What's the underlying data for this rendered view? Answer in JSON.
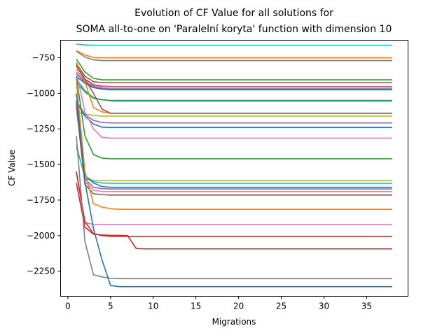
{
  "chart_data": {
    "type": "line",
    "title_line1": "Evolution of CF Value for all solutions for",
    "title_line2": "SOMA all-to-one on 'Paralelní koryta' function with dimension 10",
    "xlabel": "Migrations",
    "ylabel": "CF Value",
    "xlim": [
      -0.85,
      39.85
    ],
    "ylim": [
      -2426,
      -627
    ],
    "xticks": [
      0,
      5,
      10,
      15,
      20,
      25,
      30,
      35
    ],
    "xtick_labels": [
      "0",
      "5",
      "10",
      "15",
      "20",
      "25",
      "30",
      "35"
    ],
    "yticks": [
      -750,
      -1000,
      -1250,
      -1500,
      -1750,
      -2000,
      -2250
    ],
    "ytick_labels": [
      "−750",
      "−1000",
      "−1250",
      "−1500",
      "−1750",
      "−2000",
      "−2250"
    ],
    "grid": false,
    "legend": false,
    "x_end": 38,
    "series": [
      {
        "color": "#17becf",
        "points": [
          [
            1,
            -655
          ],
          [
            2,
            -660
          ],
          [
            3,
            -662
          ]
        ],
        "final": -662
      },
      {
        "color": "#ff7f0e",
        "points": [
          [
            1,
            -700
          ],
          [
            2,
            -730
          ],
          [
            3,
            -748
          ]
        ],
        "final": -750
      },
      {
        "color": "#7f7f7f",
        "points": [
          [
            1,
            -705
          ],
          [
            2,
            -745
          ],
          [
            3,
            -765
          ]
        ],
        "final": -770
      },
      {
        "color": "#2ca02c",
        "points": [
          [
            1,
            -760
          ],
          [
            2,
            -850
          ],
          [
            3,
            -895
          ],
          [
            4,
            -905
          ]
        ],
        "final": -905
      },
      {
        "color": "#8c564b",
        "points": [
          [
            1,
            -790
          ],
          [
            2,
            -880
          ],
          [
            3,
            -918
          ],
          [
            4,
            -925
          ]
        ],
        "final": -925
      },
      {
        "color": "#d62728",
        "points": [
          [
            1,
            -800
          ],
          [
            2,
            -900
          ],
          [
            3,
            -940
          ],
          [
            4,
            -950
          ]
        ],
        "final": -952
      },
      {
        "color": "#e377c2",
        "points": [
          [
            1,
            -830
          ],
          [
            2,
            -920
          ],
          [
            3,
            -948
          ],
          [
            4,
            -955
          ]
        ],
        "final": -955
      },
      {
        "color": "#bcbd22",
        "points": [
          [
            1,
            -850
          ],
          [
            2,
            -930
          ],
          [
            3,
            -960
          ],
          [
            4,
            -965
          ]
        ],
        "final": -965
      },
      {
        "color": "#9467bd",
        "points": [
          [
            1,
            -860
          ],
          [
            2,
            -920
          ],
          [
            3,
            -955
          ],
          [
            4,
            -965
          ],
          [
            5,
            -970
          ]
        ],
        "final": -970
      },
      {
        "color": "#1f77b4",
        "points": [
          [
            1,
            -880
          ],
          [
            2,
            -930
          ],
          [
            3,
            -960
          ],
          [
            4,
            -970
          ],
          [
            5,
            -975
          ]
        ],
        "final": -975
      },
      {
        "color": "#17becf",
        "points": [
          [
            1,
            -900
          ],
          [
            2,
            -980
          ],
          [
            3,
            -1030
          ],
          [
            4,
            -1045
          ],
          [
            5,
            -1052
          ]
        ],
        "final": -1055
      },
      {
        "color": "#2ca02c",
        "points": [
          [
            1,
            -920
          ],
          [
            2,
            -990
          ],
          [
            3,
            -1035
          ],
          [
            4,
            -1045
          ],
          [
            5,
            -1050
          ]
        ],
        "final": -1050
      },
      {
        "color": "#ff7f0e",
        "points": [
          [
            1,
            -780
          ],
          [
            2,
            -920
          ],
          [
            3,
            -1100
          ],
          [
            4,
            -1130
          ],
          [
            5,
            -1140
          ]
        ],
        "final": -1140
      },
      {
        "color": "#8c564b",
        "points": [
          [
            1,
            -810
          ],
          [
            2,
            -900
          ],
          [
            3,
            -1000
          ],
          [
            4,
            -1110
          ],
          [
            5,
            -1140
          ]
        ],
        "final": -1140
      },
      {
        "color": "#bcbd22",
        "points": [
          [
            1,
            -1130
          ],
          [
            2,
            -1145
          ],
          [
            3,
            -1155
          ],
          [
            4,
            -1160
          ]
        ],
        "final": -1160
      },
      {
        "color": "#9467bd",
        "points": [
          [
            1,
            -1050
          ],
          [
            2,
            -1150
          ],
          [
            3,
            -1190
          ],
          [
            4,
            -1205
          ],
          [
            5,
            -1208
          ]
        ],
        "final": -1208
      },
      {
        "color": "#1f77b4",
        "points": [
          [
            1,
            -1060
          ],
          [
            2,
            -1160
          ],
          [
            3,
            -1215
          ],
          [
            4,
            -1238
          ]
        ],
        "final": -1240
      },
      {
        "color": "#e377c2",
        "points": [
          [
            1,
            -850
          ],
          [
            2,
            -1130
          ],
          [
            3,
            -1250
          ],
          [
            4,
            -1310
          ],
          [
            5,
            -1315
          ]
        ],
        "final": -1315
      },
      {
        "color": "#2ca02c",
        "points": [
          [
            1,
            -880
          ],
          [
            2,
            -1300
          ],
          [
            3,
            -1430
          ],
          [
            4,
            -1455
          ],
          [
            5,
            -1460
          ]
        ],
        "final": -1460
      },
      {
        "color": "#bcbd22",
        "points": [
          [
            1,
            -1360
          ],
          [
            2,
            -1600
          ],
          [
            3,
            -1610
          ],
          [
            4,
            -1612
          ]
        ],
        "final": -1612
      },
      {
        "color": "#17becf",
        "points": [
          [
            1,
            -1380
          ],
          [
            2,
            -1580
          ],
          [
            3,
            -1620
          ],
          [
            4,
            -1630
          ],
          [
            5,
            -1632
          ]
        ],
        "final": -1632
      },
      {
        "color": "#1f77b4",
        "points": [
          [
            1,
            -1050
          ],
          [
            2,
            -1580
          ],
          [
            3,
            -1630
          ],
          [
            4,
            -1655
          ],
          [
            5,
            -1660
          ]
        ],
        "final": -1660
      },
      {
        "color": "#9467bd",
        "points": [
          [
            1,
            -1070
          ],
          [
            2,
            -1600
          ],
          [
            3,
            -1660
          ],
          [
            4,
            -1670
          ]
        ],
        "final": -1672
      },
      {
        "color": "#e377c2",
        "points": [
          [
            1,
            -1100
          ],
          [
            2,
            -1620
          ],
          [
            3,
            -1680
          ],
          [
            4,
            -1690
          ]
        ],
        "final": -1690
      },
      {
        "color": "#8c564b",
        "points": [
          [
            1,
            -1080
          ],
          [
            2,
            -1640
          ],
          [
            3,
            -1705
          ],
          [
            4,
            -1712
          ]
        ],
        "final": -1715
      },
      {
        "color": "#ff7f0e",
        "points": [
          [
            1,
            -920
          ],
          [
            2,
            -1550
          ],
          [
            3,
            -1775
          ],
          [
            4,
            -1800
          ],
          [
            5,
            -1810
          ],
          [
            6,
            -1815
          ]
        ],
        "final": -1815
      },
      {
        "color": "#e377c2",
        "points": [
          [
            1,
            -1560
          ],
          [
            2,
            -1910
          ],
          [
            3,
            -1920
          ],
          [
            4,
            -1922
          ]
        ],
        "final": -1922
      },
      {
        "color": "#d62728",
        "points": [
          [
            1,
            -1550
          ],
          [
            2,
            -1900
          ],
          [
            3,
            -1985
          ],
          [
            4,
            -2000
          ],
          [
            5,
            -2005
          ]
        ],
        "final": -2005
      },
      {
        "color": "#d62728",
        "points": [
          [
            1,
            -1630
          ],
          [
            2,
            -1940
          ],
          [
            3,
            -1990
          ],
          [
            4,
            -1995
          ],
          [
            5,
            -1998
          ],
          [
            6,
            -1998
          ],
          [
            7,
            -2000
          ],
          [
            8,
            -2090
          ],
          [
            9,
            -2093
          ]
        ],
        "final": -2093
      },
      {
        "color": "#7f7f7f",
        "points": [
          [
            1,
            -1300
          ],
          [
            2,
            -2040
          ],
          [
            3,
            -2275
          ],
          [
            4,
            -2290
          ],
          [
            5,
            -2300
          ]
        ],
        "final": -2302
      },
      {
        "color": "#1f77b4",
        "points": [
          [
            1,
            -1000
          ],
          [
            2,
            -1620
          ],
          [
            3,
            -1950
          ],
          [
            4,
            -2170
          ],
          [
            5,
            -2350
          ],
          [
            6,
            -2358
          ]
        ],
        "final": -2358
      }
    ]
  }
}
